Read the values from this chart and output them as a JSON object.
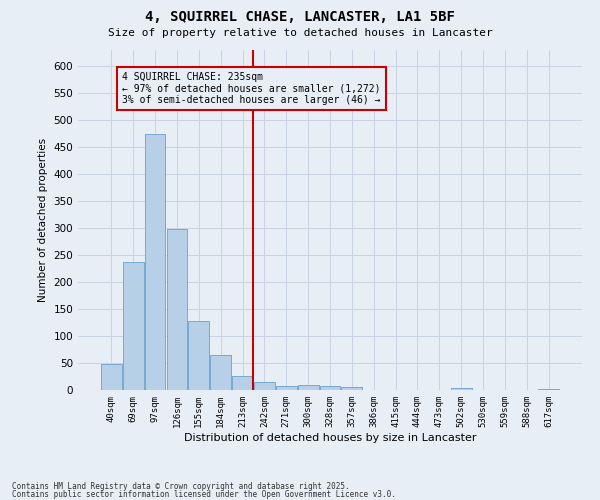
{
  "title": "4, SQUIRREL CHASE, LANCASTER, LA1 5BF",
  "subtitle": "Size of property relative to detached houses in Lancaster",
  "xlabel": "Distribution of detached houses by size in Lancaster",
  "ylabel": "Number of detached properties",
  "categories": [
    "40sqm",
    "69sqm",
    "97sqm",
    "126sqm",
    "155sqm",
    "184sqm",
    "213sqm",
    "242sqm",
    "271sqm",
    "300sqm",
    "328sqm",
    "357sqm",
    "386sqm",
    "415sqm",
    "444sqm",
    "473sqm",
    "502sqm",
    "530sqm",
    "559sqm",
    "588sqm",
    "617sqm"
  ],
  "values": [
    48,
    238,
    475,
    298,
    128,
    65,
    26,
    14,
    8,
    10,
    8,
    5,
    0,
    0,
    0,
    0,
    3,
    0,
    0,
    0,
    2
  ],
  "bar_color": "#b8cfe8",
  "bar_edge_color": "#6a9fd0",
  "grid_color": "#c8d4e4",
  "background_color": "#e8eef6",
  "vline_color": "#cc0000",
  "annotation_box_color": "#cc0000",
  "annotation_title": "4 SQUIRREL CHASE: 235sqm",
  "annotation_line1": "← 97% of detached houses are smaller (1,272)",
  "annotation_line2": "3% of semi-detached houses are larger (46) →",
  "footer1": "Contains HM Land Registry data © Crown copyright and database right 2025.",
  "footer2": "Contains public sector information licensed under the Open Government Licence v3.0.",
  "ylim": [
    0,
    630
  ],
  "yticks": [
    0,
    50,
    100,
    150,
    200,
    250,
    300,
    350,
    400,
    450,
    500,
    550,
    600
  ],
  "vline_index": 7
}
